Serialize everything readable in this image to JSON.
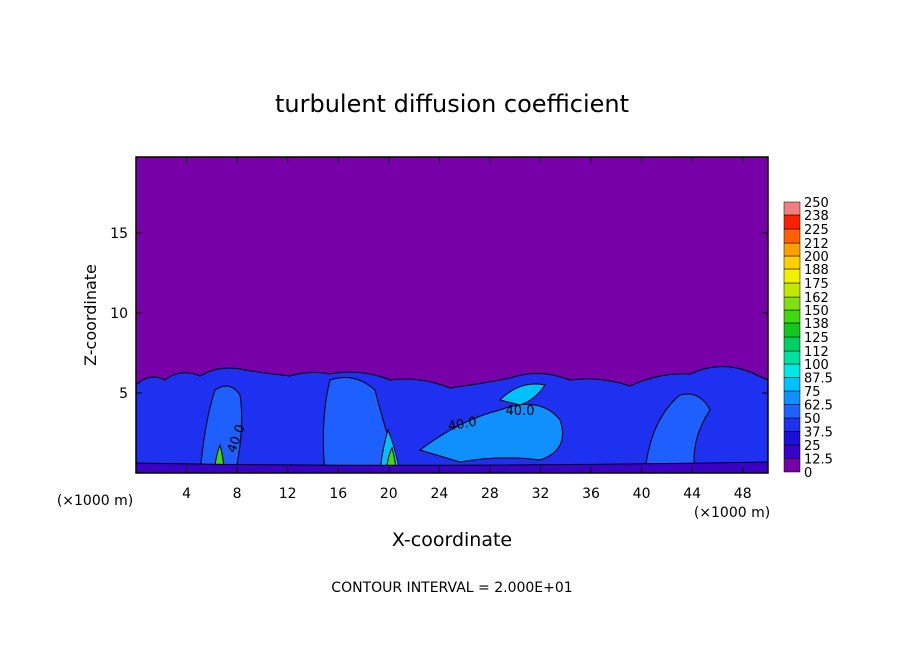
{
  "chart_data": {
    "type": "contour",
    "title": "turbulent diffusion coefficient",
    "x_label": "X-coordinate",
    "y_label": "Z-coordinate",
    "x_unit": "(×1000 m)",
    "y_unit": "(×1000 m)",
    "xlim": [
      0,
      50
    ],
    "xticks": [
      4,
      8,
      12,
      16,
      20,
      24,
      28,
      32,
      36,
      40,
      44,
      48
    ],
    "ylim": [
      0,
      19.75
    ],
    "yticks": [
      5,
      10,
      15
    ],
    "levels": [
      0,
      12.5,
      25,
      37.5,
      50,
      62.5,
      75,
      87.5,
      100,
      112,
      125,
      138,
      150,
      162,
      175,
      188,
      200,
      212,
      225,
      238,
      250
    ],
    "colors": [
      "#7800a8",
      "#3a00c8",
      "#1a10d8",
      "#1e30f0",
      "#1e60ff",
      "#1090ff",
      "#00c0ff",
      "#00e8e8",
      "#00e0a0",
      "#00d060",
      "#10c820",
      "#40d810",
      "#80e010",
      "#c0e800",
      "#f0f000",
      "#ffd000",
      "#ffa000",
      "#ff6000",
      "#ff2000",
      "#f08080"
    ],
    "contour_labels": [
      "40.0",
      "40.0",
      "40.0"
    ],
    "footnote": "CONTOUR INTERVAL = 2.000E+01"
  }
}
